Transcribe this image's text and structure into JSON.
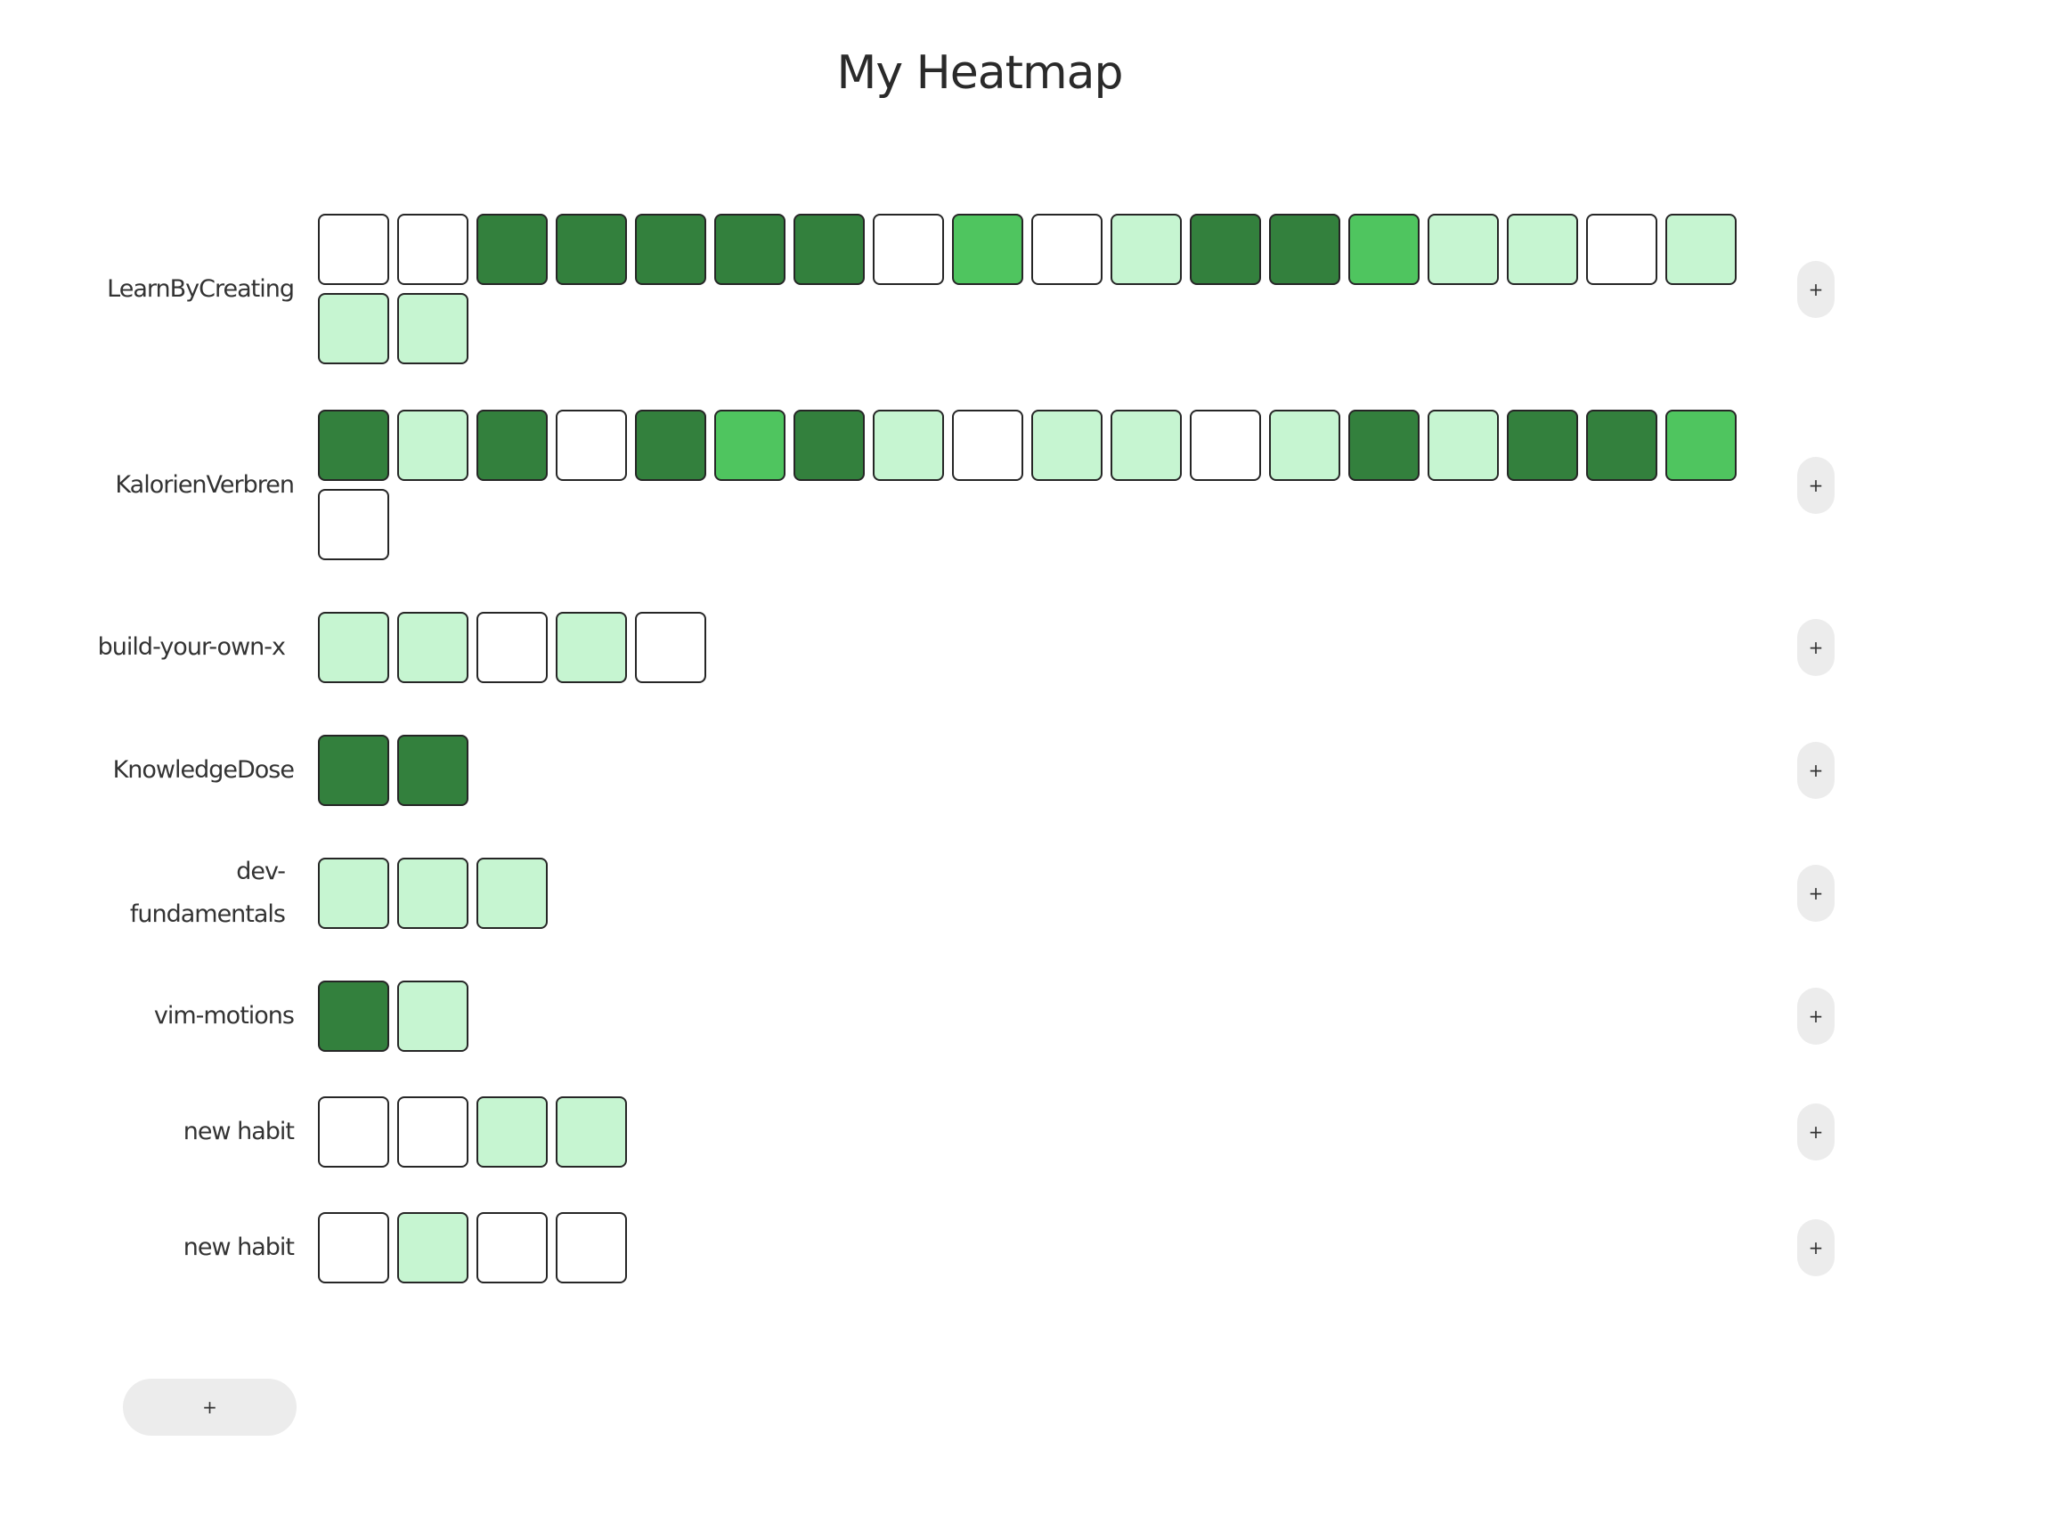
{
  "page": {
    "title": "My Heatmap"
  },
  "level_colors": [
    "#ffffff",
    "#c6f5d1",
    "#4fc55f",
    "#33803d"
  ],
  "cell_border_color": "#262626",
  "habits": [
    {
      "name": "LearnByCreating",
      "add_label": "+",
      "days": [
        0,
        0,
        3,
        3,
        3,
        3,
        3,
        0,
        2,
        0,
        1,
        3,
        3,
        2,
        1,
        1,
        0,
        1,
        1,
        1
      ]
    },
    {
      "name": "KalorienVerbren",
      "add_label": "+",
      "days": [
        3,
        1,
        3,
        0,
        3,
        2,
        3,
        1,
        0,
        1,
        1,
        0,
        1,
        3,
        1,
        3,
        3,
        2,
        0
      ]
    },
    {
      "name": "build-your-own-x",
      "add_label": "+",
      "days": [
        1,
        1,
        0,
        1,
        0
      ]
    },
    {
      "name": "KnowledgeDose",
      "add_label": "+",
      "days": [
        3,
        3
      ]
    },
    {
      "name": "dev-fundamentals",
      "add_label": "+",
      "days": [
        1,
        1,
        1
      ]
    },
    {
      "name": "vim-motions",
      "add_label": "+",
      "days": [
        3,
        1
      ]
    },
    {
      "name": "new habit",
      "add_label": "+",
      "days": [
        0,
        0,
        1,
        1
      ]
    },
    {
      "name": "new habit",
      "add_label": "+",
      "days": [
        0,
        1,
        0,
        0
      ]
    }
  ],
  "add_habit_label": "+"
}
